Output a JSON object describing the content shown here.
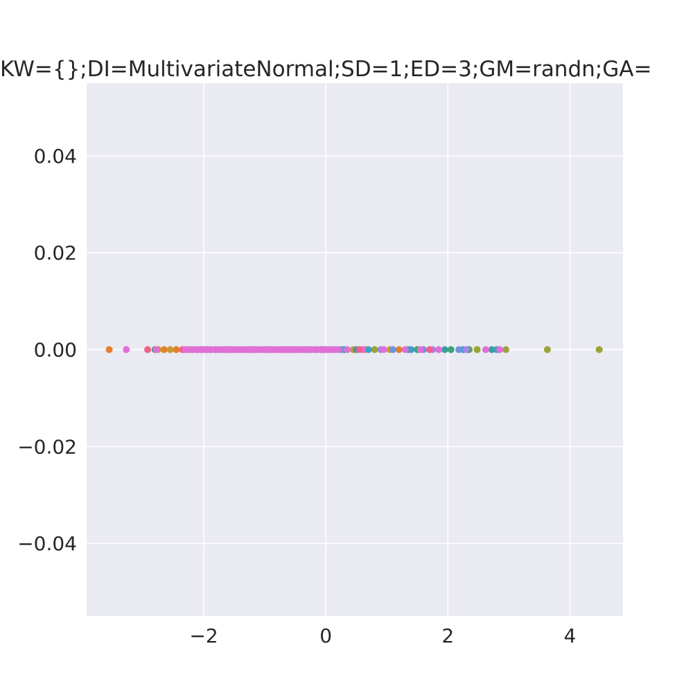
{
  "chart_data": {
    "type": "scatter",
    "title": "KW={};DI=MultivariateNormal;SD=1;ED=3;GM=randn;GA=",
    "xlabel": "",
    "ylabel": "",
    "xlim": [
      -3.92,
      4.87
    ],
    "ylim": [
      -0.055,
      0.055
    ],
    "grid": true,
    "xticks": [
      -2,
      0,
      2,
      4
    ],
    "xtick_labels": [
      "−2",
      "0",
      "2",
      "4"
    ],
    "yticks": [
      0.04,
      0.02,
      0.0,
      -0.02,
      -0.04
    ],
    "ytick_labels": [
      "0.04",
      "0.02",
      "0.00",
      "−0.02",
      "−0.04"
    ],
    "colors": {
      "background": "#eaeaf2",
      "grid": "#ffffff",
      "text": "#262626"
    },
    "series": [
      {
        "color": "#e1812c",
        "x": [
          -3.55,
          -2.65,
          -2.45,
          -2.3,
          -2.0,
          -1.45,
          -1.2,
          -0.5,
          0.1,
          0.65,
          1.2
        ],
        "y": [
          0,
          0,
          0,
          0,
          0,
          0,
          0,
          0,
          0,
          0,
          0
        ]
      },
      {
        "color": "#c79c2e",
        "x": [
          -2.75,
          -2.55,
          -2.2,
          -1.7,
          -0.85,
          -0.3,
          0.45,
          1.05
        ],
        "y": [
          0,
          0,
          0,
          0,
          0,
          0,
          0,
          0
        ]
      },
      {
        "color": "#9aa336",
        "x": [
          -1.95,
          -1.0,
          -0.05,
          0.8,
          2.35,
          2.48,
          2.95,
          3.63,
          4.48
        ],
        "y": [
          0,
          0,
          0,
          0,
          0,
          0,
          0,
          0,
          0
        ]
      },
      {
        "color": "#3ba374",
        "x": [
          -2.8,
          -1.55,
          -0.6,
          0.3,
          1.5,
          2.05,
          2.33
        ],
        "y": [
          0,
          0,
          0,
          0,
          0,
          0,
          0
        ]
      },
      {
        "color": "#3a9e9e",
        "x": [
          -2.05,
          -1.25,
          -0.35,
          0.5,
          1.35,
          1.95,
          2.72
        ],
        "y": [
          0,
          0,
          0,
          0,
          0,
          0,
          0
        ]
      },
      {
        "color": "#3fa0c4",
        "x": [
          -1.8,
          -0.9,
          0.0,
          0.7,
          1.4,
          2.25,
          2.8
        ],
        "y": [
          0,
          0,
          0,
          0,
          0,
          0,
          0
        ]
      },
      {
        "color": "#6f93e0",
        "x": [
          -2.25,
          -1.35,
          -0.45,
          0.25,
          1.1,
          1.6,
          2.18
        ],
        "y": [
          0,
          0,
          0,
          0,
          0,
          0,
          0
        ]
      },
      {
        "color": "#a585e8",
        "x": [
          -1.5,
          -0.75,
          0.15,
          0.9,
          1.75,
          2.3
        ],
        "y": [
          0,
          0,
          0,
          0,
          0,
          0
        ]
      },
      {
        "color": "#e06fd8",
        "x": [
          -3.27,
          -2.78,
          -2.1,
          -1.9,
          -1.6,
          -1.3,
          -1.1,
          -0.95,
          -0.8,
          -0.7,
          -0.55,
          -0.4,
          -0.25,
          -0.15,
          0.05,
          0.2,
          0.35,
          0.6,
          0.95,
          1.3,
          1.55,
          1.85,
          2.62,
          2.85
        ],
        "y": [
          0,
          0,
          0,
          0,
          0,
          0,
          0,
          0,
          0,
          0,
          0,
          0,
          0,
          0,
          0,
          0,
          0,
          0,
          0,
          0,
          0,
          0,
          0,
          0
        ]
      },
      {
        "color": "#f25f8c",
        "x": [
          -2.92,
          -2.35,
          -1.65,
          -0.65,
          0.55,
          1.7
        ],
        "y": [
          0,
          0,
          0,
          0,
          0,
          0
        ]
      }
    ]
  }
}
